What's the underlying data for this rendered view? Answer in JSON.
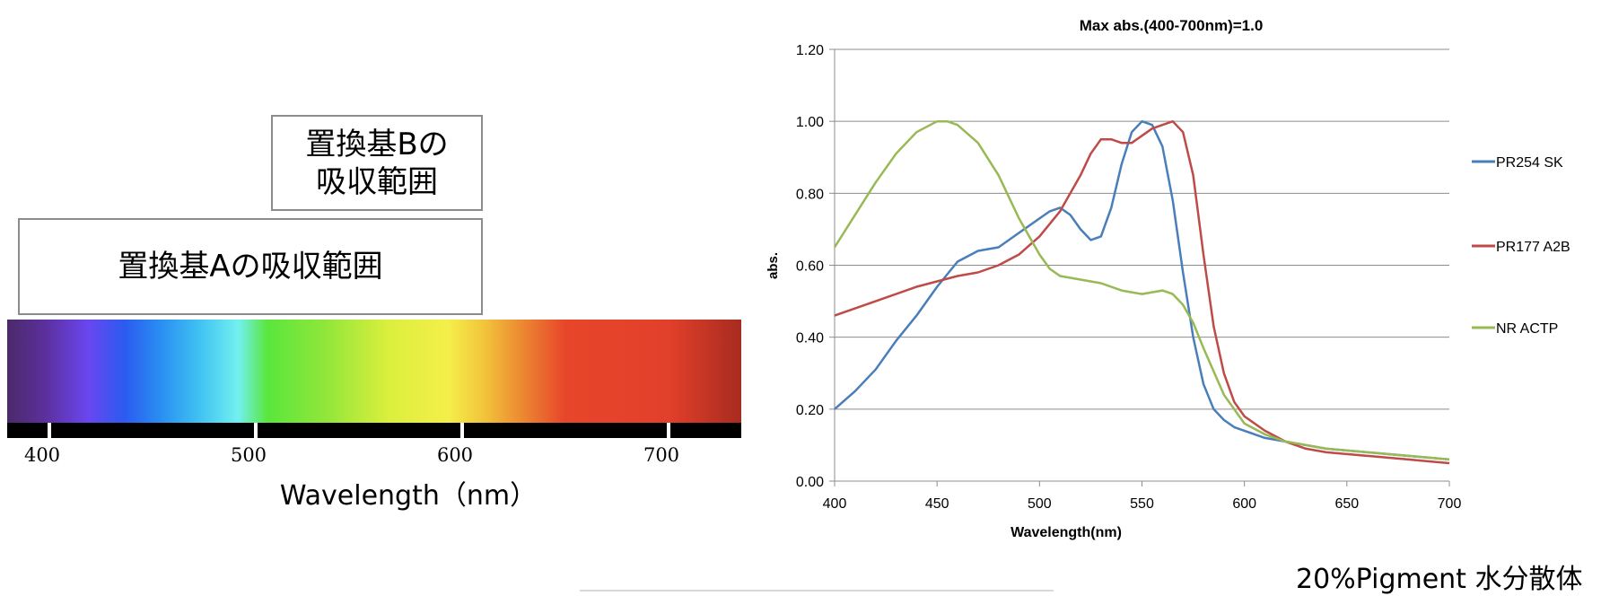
{
  "left_panel": {
    "box_b_lines": [
      "置換基Bの",
      "吸収範囲"
    ],
    "box_a_label": "置換基Aの吸収範囲",
    "spectrum": {
      "ticks": [
        "400",
        "500",
        "600",
        "700"
      ],
      "axis_label": "Wavelength（nm）"
    }
  },
  "footnote": "20%Pigment 水分散体",
  "chart_data": {
    "type": "line",
    "title": "Max abs.(400-700nm)=1.0",
    "xlabel": "Wavelength(nm)",
    "ylabel": "abs.",
    "xlim": [
      400,
      700
    ],
    "ylim": [
      0,
      1.2
    ],
    "x_ticks": [
      400,
      450,
      500,
      550,
      600,
      650,
      700
    ],
    "y_ticks": [
      "0.00",
      "0.20",
      "0.40",
      "0.60",
      "0.80",
      "1.00",
      "1.20"
    ],
    "grid": "horizontal",
    "legend_position": "right",
    "series": [
      {
        "name": "PR254 SK",
        "color": "#4a7ebb",
        "x": [
          400,
          410,
          420,
          430,
          440,
          450,
          460,
          470,
          480,
          490,
          500,
          505,
          510,
          515,
          520,
          525,
          530,
          535,
          540,
          545,
          550,
          555,
          560,
          565,
          570,
          575,
          580,
          585,
          590,
          595,
          600,
          610,
          620,
          630,
          640,
          650,
          660,
          670,
          680,
          690,
          700
        ],
        "y": [
          0.2,
          0.25,
          0.31,
          0.39,
          0.46,
          0.54,
          0.61,
          0.64,
          0.65,
          0.69,
          0.73,
          0.75,
          0.76,
          0.74,
          0.7,
          0.67,
          0.68,
          0.76,
          0.88,
          0.97,
          1.0,
          0.99,
          0.93,
          0.78,
          0.58,
          0.4,
          0.27,
          0.2,
          0.17,
          0.15,
          0.14,
          0.12,
          0.11,
          0.1,
          0.09,
          0.085,
          0.08,
          0.075,
          0.07,
          0.065,
          0.06
        ]
      },
      {
        "name": "PR177 A2B",
        "color": "#be4b48",
        "x": [
          400,
          420,
          440,
          460,
          470,
          480,
          490,
          500,
          510,
          520,
          525,
          530,
          535,
          540,
          545,
          550,
          555,
          560,
          565,
          570,
          575,
          580,
          585,
          590,
          595,
          600,
          610,
          620,
          630,
          640,
          650,
          660,
          670,
          680,
          690,
          700
        ],
        "y": [
          0.46,
          0.5,
          0.54,
          0.57,
          0.58,
          0.6,
          0.63,
          0.68,
          0.75,
          0.85,
          0.91,
          0.95,
          0.95,
          0.94,
          0.94,
          0.96,
          0.98,
          0.99,
          1.0,
          0.97,
          0.85,
          0.63,
          0.43,
          0.3,
          0.22,
          0.18,
          0.14,
          0.11,
          0.09,
          0.08,
          0.075,
          0.07,
          0.065,
          0.06,
          0.055,
          0.05
        ]
      },
      {
        "name": "NR ACTP",
        "color": "#98b954",
        "x": [
          400,
          410,
          420,
          430,
          440,
          450,
          455,
          460,
          470,
          480,
          490,
          500,
          505,
          510,
          520,
          530,
          540,
          550,
          560,
          565,
          570,
          575,
          580,
          590,
          600,
          610,
          620,
          630,
          640,
          650,
          660,
          670,
          680,
          690,
          700
        ],
        "y": [
          0.65,
          0.74,
          0.83,
          0.91,
          0.97,
          1.0,
          1.0,
          0.99,
          0.94,
          0.85,
          0.73,
          0.63,
          0.59,
          0.57,
          0.56,
          0.55,
          0.53,
          0.52,
          0.53,
          0.52,
          0.49,
          0.44,
          0.37,
          0.24,
          0.16,
          0.13,
          0.11,
          0.1,
          0.09,
          0.085,
          0.08,
          0.075,
          0.07,
          0.065,
          0.06
        ]
      }
    ]
  }
}
